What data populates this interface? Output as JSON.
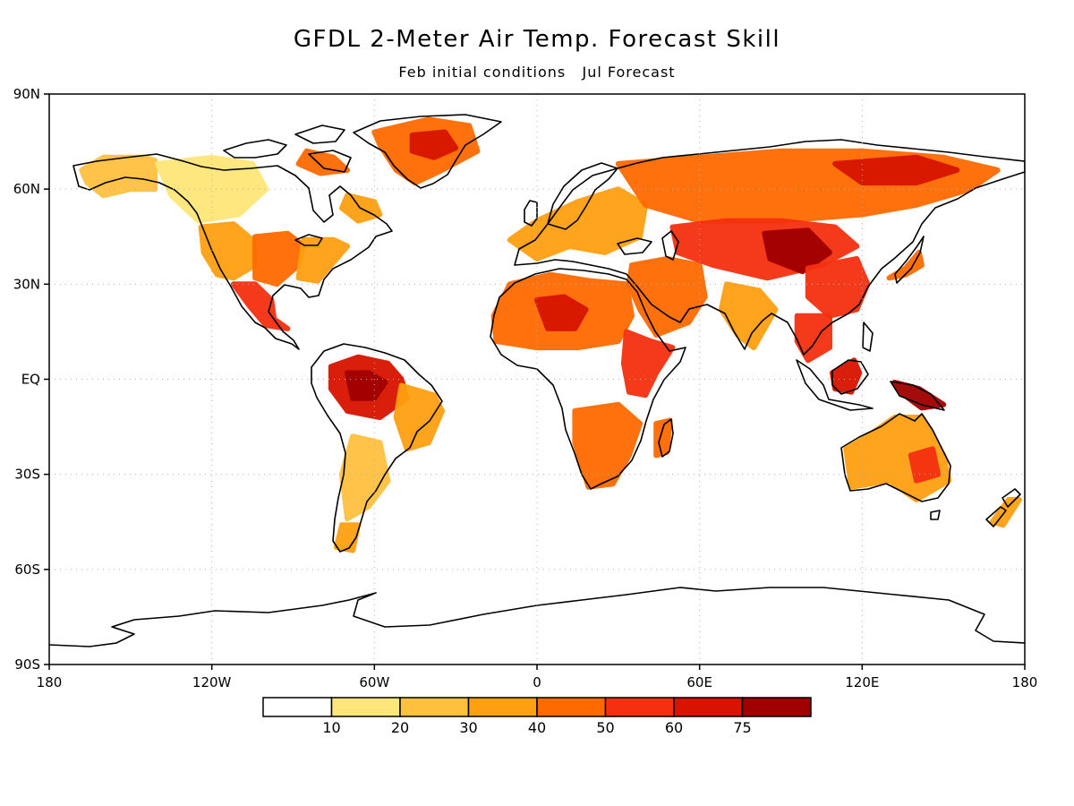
{
  "title": "GFDL 2-Meter Air Temp. Forecast Skill",
  "subtitle": "Feb initial conditions   Jul Forecast",
  "chart_data": {
    "type": "heatmap",
    "projection": "cylindrical equidistant",
    "title": "GFDL 2-Meter Air Temp. Forecast Skill",
    "subtitle": "Feb initial conditions   Jul Forecast",
    "xlim": [
      -180,
      180
    ],
    "ylim": [
      -90,
      90
    ],
    "grid": true,
    "x_ticks": [
      {
        "value": -180,
        "label": "180"
      },
      {
        "value": -120,
        "label": "120W"
      },
      {
        "value": -60,
        "label": "60W"
      },
      {
        "value": 0,
        "label": "0"
      },
      {
        "value": 60,
        "label": "60E"
      },
      {
        "value": 120,
        "label": "120E"
      },
      {
        "value": 180,
        "label": "180"
      }
    ],
    "y_ticks": [
      {
        "value": 90,
        "label": "90N"
      },
      {
        "value": 60,
        "label": "60N"
      },
      {
        "value": 30,
        "label": "30N"
      },
      {
        "value": 0,
        "label": "EQ"
      },
      {
        "value": -30,
        "label": "30S"
      },
      {
        "value": -60,
        "label": "60S"
      },
      {
        "value": -90,
        "label": "90S"
      }
    ],
    "colorbar": {
      "placement": "bottom",
      "levels": [
        "10",
        "20",
        "30",
        "40",
        "50",
        "60",
        "75"
      ],
      "colors": [
        "#ffffff",
        "#ffe67a",
        "#ffc040",
        "#ffa010",
        "#ff6a00",
        "#f53010",
        "#d81400",
        "#a00000"
      ]
    },
    "skill_regions": [
      {
        "name": "alaska",
        "level": 2,
        "coords": [
          [
            -168,
            66
          ],
          [
            -160,
            70
          ],
          [
            -145,
            70
          ],
          [
            -141,
            69
          ],
          [
            -141,
            60
          ],
          [
            -150,
            60
          ],
          [
            -160,
            58
          ],
          [
            -166,
            62
          ]
        ]
      },
      {
        "name": "western-canada",
        "level": 1,
        "coords": [
          [
            -140,
            68
          ],
          [
            -120,
            70
          ],
          [
            -105,
            68
          ],
          [
            -100,
            60
          ],
          [
            -110,
            52
          ],
          [
            -125,
            50
          ],
          [
            -135,
            58
          ]
        ]
      },
      {
        "name": "canadian-arctic",
        "level": 4,
        "coords": [
          [
            -85,
            72
          ],
          [
            -75,
            70
          ],
          [
            -70,
            66
          ],
          [
            -80,
            65
          ],
          [
            -88,
            68
          ]
        ]
      },
      {
        "name": "labrador",
        "level": 3,
        "coords": [
          [
            -70,
            58
          ],
          [
            -60,
            56
          ],
          [
            -58,
            52
          ],
          [
            -66,
            50
          ],
          [
            -72,
            54
          ]
        ]
      },
      {
        "name": "western-us",
        "level": 3,
        "coords": [
          [
            -124,
            48
          ],
          [
            -112,
            49
          ],
          [
            -105,
            44
          ],
          [
            -104,
            36
          ],
          [
            -112,
            32
          ],
          [
            -118,
            33
          ],
          [
            -123,
            40
          ]
        ]
      },
      {
        "name": "central-us",
        "level": 4,
        "coords": [
          [
            -104,
            45
          ],
          [
            -92,
            46
          ],
          [
            -86,
            42
          ],
          [
            -88,
            36
          ],
          [
            -96,
            30
          ],
          [
            -104,
            32
          ]
        ]
      },
      {
        "name": "eastern-us",
        "level": 3,
        "coords": [
          [
            -86,
            44
          ],
          [
            -75,
            44
          ],
          [
            -70,
            42
          ],
          [
            -76,
            36
          ],
          [
            -81,
            31
          ],
          [
            -88,
            32
          ]
        ]
      },
      {
        "name": "mexico",
        "level": 5,
        "coords": [
          [
            -112,
            30
          ],
          [
            -104,
            30
          ],
          [
            -98,
            25
          ],
          [
            -97,
            19
          ],
          [
            -92,
            16
          ],
          [
            -100,
            17
          ],
          [
            -106,
            23
          ]
        ]
      },
      {
        "name": "greenland",
        "level": 4,
        "coords": [
          [
            -60,
            78
          ],
          [
            -40,
            82
          ],
          [
            -25,
            80
          ],
          [
            -22,
            72
          ],
          [
            -35,
            66
          ],
          [
            -45,
            62
          ],
          [
            -52,
            66
          ],
          [
            -58,
            74
          ]
        ]
      },
      {
        "name": "greenland-core",
        "level": 6,
        "coords": [
          [
            -46,
            77
          ],
          [
            -34,
            78
          ],
          [
            -30,
            73
          ],
          [
            -38,
            70
          ],
          [
            -46,
            72
          ]
        ]
      },
      {
        "name": "amazon",
        "level": 6,
        "coords": [
          [
            -76,
            4
          ],
          [
            -66,
            7
          ],
          [
            -55,
            5
          ],
          [
            -50,
            0
          ],
          [
            -48,
            -6
          ],
          [
            -58,
            -12
          ],
          [
            -70,
            -10
          ],
          [
            -76,
            -3
          ]
        ]
      },
      {
        "name": "amazon-core",
        "level": 7,
        "coords": [
          [
            -70,
            2
          ],
          [
            -62,
            2
          ],
          [
            -56,
            -1
          ],
          [
            -60,
            -6
          ],
          [
            -68,
            -6
          ]
        ]
      },
      {
        "name": "brazil-east",
        "level": 3,
        "coords": [
          [
            -50,
            -2
          ],
          [
            -38,
            -5
          ],
          [
            -35,
            -10
          ],
          [
            -40,
            -20
          ],
          [
            -48,
            -22
          ],
          [
            -52,
            -12
          ]
        ]
      },
      {
        "name": "south-america-south",
        "level": 2,
        "coords": [
          [
            -68,
            -18
          ],
          [
            -58,
            -20
          ],
          [
            -55,
            -32
          ],
          [
            -62,
            -40
          ],
          [
            -70,
            -44
          ],
          [
            -72,
            -30
          ]
        ]
      },
      {
        "name": "patagonia",
        "level": 3,
        "coords": [
          [
            -72,
            -46
          ],
          [
            -66,
            -46
          ],
          [
            -68,
            -54
          ],
          [
            -74,
            -53
          ]
        ]
      },
      {
        "name": "sahara",
        "level": 4,
        "coords": [
          [
            -16,
            20
          ],
          [
            -10,
            30
          ],
          [
            5,
            33
          ],
          [
            20,
            31
          ],
          [
            33,
            30
          ],
          [
            35,
            20
          ],
          [
            30,
            12
          ],
          [
            15,
            10
          ],
          [
            0,
            10
          ],
          [
            -15,
            12
          ]
        ]
      },
      {
        "name": "sahara-core",
        "level": 6,
        "coords": [
          [
            0,
            25
          ],
          [
            10,
            26
          ],
          [
            18,
            22
          ],
          [
            14,
            16
          ],
          [
            4,
            16
          ]
        ]
      },
      {
        "name": "east-africa",
        "level": 5,
        "coords": [
          [
            33,
            15
          ],
          [
            42,
            12
          ],
          [
            50,
            10
          ],
          [
            44,
            2
          ],
          [
            40,
            -5
          ],
          [
            34,
            -4
          ],
          [
            32,
            5
          ]
        ]
      },
      {
        "name": "southern-africa",
        "level": 4,
        "coords": [
          [
            14,
            -10
          ],
          [
            30,
            -8
          ],
          [
            38,
            -14
          ],
          [
            34,
            -24
          ],
          [
            28,
            -33
          ],
          [
            19,
            -34
          ],
          [
            14,
            -20
          ]
        ]
      },
      {
        "name": "madagascar",
        "level": 4,
        "coords": [
          [
            44,
            -14
          ],
          [
            49,
            -13
          ],
          [
            48,
            -23
          ],
          [
            44,
            -24
          ]
        ]
      },
      {
        "name": "middle-east",
        "level": 4,
        "coords": [
          [
            35,
            36
          ],
          [
            48,
            38
          ],
          [
            60,
            36
          ],
          [
            62,
            26
          ],
          [
            56,
            18
          ],
          [
            44,
            14
          ],
          [
            38,
            22
          ],
          [
            34,
            30
          ]
        ]
      },
      {
        "name": "europe",
        "level": 3,
        "coords": [
          [
            -10,
            44
          ],
          [
            0,
            50
          ],
          [
            15,
            56
          ],
          [
            30,
            60
          ],
          [
            40,
            55
          ],
          [
            38,
            45
          ],
          [
            25,
            40
          ],
          [
            12,
            42
          ],
          [
            0,
            38
          ]
        ]
      },
      {
        "name": "russia",
        "level": 4,
        "coords": [
          [
            30,
            68
          ],
          [
            60,
            70
          ],
          [
            90,
            72
          ],
          [
            120,
            72
          ],
          [
            150,
            70
          ],
          [
            170,
            66
          ],
          [
            160,
            60
          ],
          [
            140,
            55
          ],
          [
            120,
            52
          ],
          [
            90,
            50
          ],
          [
            60,
            50
          ],
          [
            40,
            55
          ]
        ]
      },
      {
        "name": "central-asia",
        "level": 5,
        "coords": [
          [
            50,
            48
          ],
          [
            70,
            50
          ],
          [
            90,
            50
          ],
          [
            110,
            48
          ],
          [
            118,
            42
          ],
          [
            105,
            36
          ],
          [
            85,
            32
          ],
          [
            65,
            36
          ],
          [
            52,
            40
          ]
        ]
      },
      {
        "name": "asia-core",
        "level": 7,
        "coords": [
          [
            84,
            46
          ],
          [
            100,
            47
          ],
          [
            108,
            40
          ],
          [
            98,
            34
          ],
          [
            86,
            38
          ]
        ]
      },
      {
        "name": "china-east",
        "level": 5,
        "coords": [
          [
            100,
            35
          ],
          [
            118,
            38
          ],
          [
            122,
            30
          ],
          [
            118,
            22
          ],
          [
            108,
            20
          ],
          [
            100,
            26
          ]
        ]
      },
      {
        "name": "siberia-east",
        "level": 6,
        "coords": [
          [
            110,
            68
          ],
          [
            140,
            70
          ],
          [
            155,
            66
          ],
          [
            140,
            62
          ],
          [
            120,
            62
          ]
        ]
      },
      {
        "name": "india",
        "level": 3,
        "coords": [
          [
            70,
            30
          ],
          [
            82,
            28
          ],
          [
            88,
            22
          ],
          [
            80,
            10
          ],
          [
            74,
            14
          ],
          [
            68,
            22
          ]
        ]
      },
      {
        "name": "southeast-asia",
        "level": 5,
        "coords": [
          [
            96,
            20
          ],
          [
            108,
            20
          ],
          [
            108,
            10
          ],
          [
            100,
            6
          ],
          [
            96,
            12
          ]
        ]
      },
      {
        "name": "borneo",
        "level": 6,
        "coords": [
          [
            109,
            2
          ],
          [
            117,
            6
          ],
          [
            119,
            2
          ],
          [
            116,
            -4
          ],
          [
            110,
            -3
          ]
        ]
      },
      {
        "name": "new-guinea",
        "level": 7,
        "coords": [
          [
            132,
            -1
          ],
          [
            141,
            -3
          ],
          [
            150,
            -8
          ],
          [
            142,
            -9
          ],
          [
            134,
            -4
          ]
        ]
      },
      {
        "name": "australia",
        "level": 3,
        "coords": [
          [
            114,
            -22
          ],
          [
            122,
            -18
          ],
          [
            132,
            -12
          ],
          [
            142,
            -12
          ],
          [
            150,
            -24
          ],
          [
            152,
            -32
          ],
          [
            140,
            -38
          ],
          [
            130,
            -32
          ],
          [
            116,
            -34
          ]
        ]
      },
      {
        "name": "australia-core",
        "level": 5,
        "coords": [
          [
            138,
            -24
          ],
          [
            146,
            -22
          ],
          [
            148,
            -30
          ],
          [
            140,
            -32
          ]
        ]
      },
      {
        "name": "japan",
        "level": 4,
        "coords": [
          [
            130,
            32
          ],
          [
            136,
            35
          ],
          [
            141,
            40
          ],
          [
            142,
            36
          ],
          [
            136,
            33
          ]
        ]
      },
      {
        "name": "new-zealand",
        "level": 3,
        "coords": [
          [
            168,
            -45
          ],
          [
            174,
            -38
          ],
          [
            178,
            -38
          ],
          [
            172,
            -46
          ]
        ]
      }
    ]
  }
}
